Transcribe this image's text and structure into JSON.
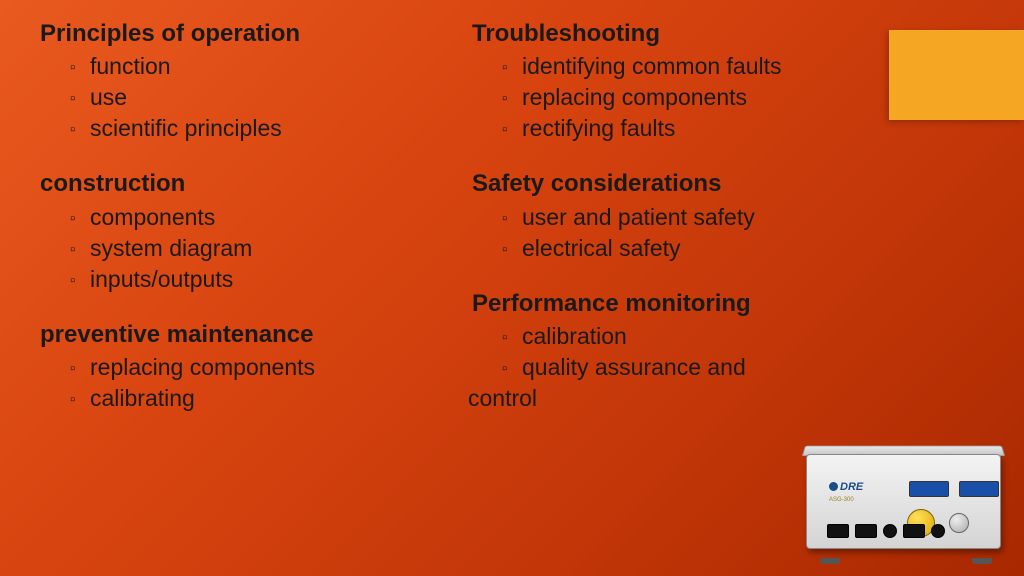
{
  "accent_color": "#f5a623",
  "background_gradient": [
    "#e85a1f",
    "#d94510",
    "#c23608",
    "#a82800"
  ],
  "text_color": "#1a1a1a",
  "font_family": "Trebuchet MS",
  "title_fontsize": 24,
  "body_fontsize": 23,
  "columns": {
    "left": [
      {
        "title": "Principles of operation",
        "items": [
          "function",
          "use",
          "scientific principles"
        ]
      },
      {
        "title": "construction",
        "items": [
          "components",
          "system diagram",
          "inputs/outputs"
        ]
      },
      {
        "title": "preventive maintenance",
        "items": [
          "replacing components",
          "calibrating"
        ]
      }
    ],
    "right": [
      {
        "title": "Troubleshooting",
        "items": [
          "identifying common faults",
          "replacing components",
          "rectifying faults"
        ]
      },
      {
        "title": "Safety considerations",
        "items": [
          "user and patient safety",
          "electrical safety"
        ]
      },
      {
        "title": "Performance monitoring",
        "items": [
          "calibration",
          "quality assurance and"
        ],
        "wrap": "control"
      }
    ]
  },
  "device": {
    "brand": "DRE",
    "model": "ASG-300",
    "body_color": "#e8e8e8",
    "knob_color": "#f0c419",
    "lcd_color": "#1a4fa8"
  }
}
